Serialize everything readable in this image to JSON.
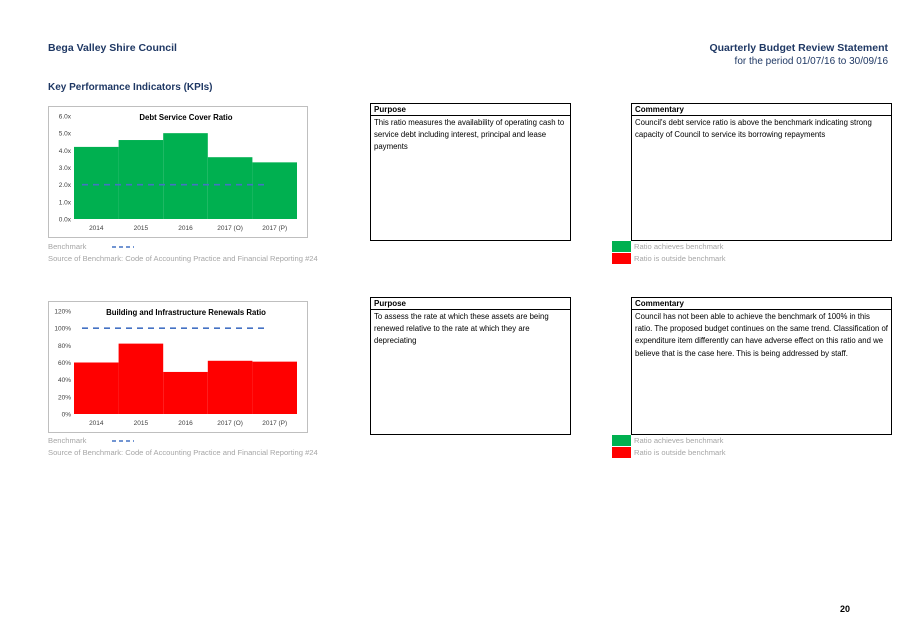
{
  "header": {
    "org": "Bega Valley Shire Council",
    "doc_title": "Quarterly Budget Review Statement",
    "period": "for the period 01/07/16 to 30/09/16"
  },
  "section_title": "Key Performance Indicators (KPIs)",
  "colors": {
    "navy": "#1f3864",
    "green": "#00b050",
    "red": "#ff0000",
    "benchmark": "#4472c4"
  },
  "chart_data": [
    {
      "type": "bar",
      "title": "Debt Service Cover Ratio",
      "categories": [
        "2014",
        "2015",
        "2016",
        "2017 (O)",
        "2017 (P)"
      ],
      "values": [
        4.2,
        4.6,
        5.0,
        3.6,
        3.3
      ],
      "benchmark": 2.0,
      "ylim": [
        0,
        6
      ],
      "yticks": [
        "0.0x",
        "1.0x",
        "2.0x",
        "3.0x",
        "4.0x",
        "5.0x",
        "6.0x"
      ],
      "bar_color": "#00b050"
    },
    {
      "type": "bar",
      "title": "Building and Infrastructure Renewals Ratio",
      "categories": [
        "2014",
        "2015",
        "2016",
        "2017 (O)",
        "2017 (P)"
      ],
      "values": [
        60,
        82,
        49,
        62,
        61
      ],
      "benchmark": 100,
      "ylim": [
        0,
        120
      ],
      "yticks": [
        "0%",
        "20%",
        "40%",
        "60%",
        "80%",
        "100%",
        "120%"
      ],
      "bar_color": "#ff0000"
    }
  ],
  "kpis": [
    {
      "purpose_heading": "Purpose",
      "purpose_text": "This ratio measures the availability of operating cash to service debt including interest, principal and lease payments",
      "commentary_heading": "Commentary",
      "commentary_text": "Council's debt service ratio is above the benchmark indicating strong capacity of Council to service its borrowing repayments",
      "benchmark_label": "Benchmark",
      "source": "Source of Benchmark: Code of Accounting Practice and Financial Reporting #24",
      "legend_achieves": "Ratio achieves benchmark",
      "legend_outside": "Ratio is outside benchmark"
    },
    {
      "purpose_heading": "Purpose",
      "purpose_text": "To assess the rate at which these assets are being renewed relative to the rate at which they are depreciating",
      "commentary_heading": "Commentary",
      "commentary_text": "Council has not been able to achieve the benchmark of 100% in this ratio. The proposed budget continues on the same trend. Classification of expenditure item differently can have adverse effect on this ratio and we believe that is the case here. This is being addressed by staff.",
      "benchmark_label": "Benchmark",
      "source": "Source of Benchmark: Code of Accounting Practice and Financial Reporting #24",
      "legend_achieves": "Ratio achieves benchmark",
      "legend_outside": "Ratio is outside benchmark"
    }
  ],
  "page_number": "20"
}
